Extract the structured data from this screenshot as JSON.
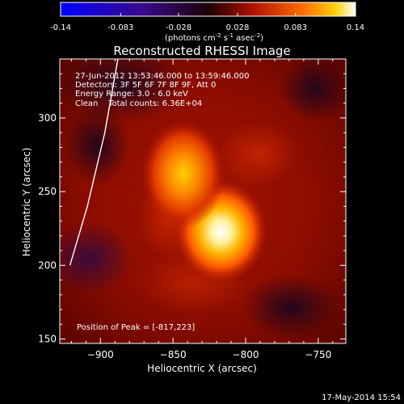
{
  "colorbar": {
    "ticks": [
      "-0.14",
      "-0.083",
      "-0.028",
      "0.028",
      "0.083",
      "0.14"
    ],
    "tick_values": [
      -0.14,
      -0.083,
      -0.028,
      0.028,
      0.083,
      0.14
    ],
    "range": [
      -0.14,
      0.14
    ],
    "units_prefix": "(photons cm",
    "units_exp1": "-2",
    "units_mid": " s",
    "units_exp2": "-1",
    "units_mid2": " asec",
    "units_exp3": "-2",
    "units_suffix": ")"
  },
  "title": "Reconstructed RHESSI Image",
  "annotations": {
    "line1": "27-Jun-2012 13:53:46.000 to 13:59:46.000",
    "line2": "Detectors: 3F 5F 6F 7F 8F 9F, Att 0",
    "line3": "Energy Range: 3.0 - 6.0 keV",
    "line4": "Clean    Total counts: 6.36E+04",
    "peak": "Position of Peak = [-817,223]"
  },
  "footer_timestamp": "17-May-2014 15:54",
  "colors": {
    "background": "#000000",
    "axes": "#ffffff"
  },
  "chart_data": {
    "type": "heatmap",
    "title": "Reconstructed RHESSI Image",
    "xlabel": "Heliocentric X (arcsec)",
    "ylabel": "Heliocentric Y (arcsec)",
    "xlim": [
      -928,
      -731
    ],
    "ylim": [
      147,
      340
    ],
    "x_ticks": [
      -900,
      -850,
      -800,
      -750
    ],
    "y_ticks": [
      150,
      200,
      250,
      300
    ],
    "x_tick_labels": [
      "−900",
      "−850",
      "−800",
      "−750"
    ],
    "y_tick_labels": [
      "150",
      "200",
      "250",
      "300"
    ],
    "value_range": [
      -0.14,
      0.14
    ],
    "sources": [
      {
        "x": -817,
        "y": 223,
        "peak": 0.14,
        "sigma": 10
      },
      {
        "x": -843,
        "y": 262,
        "peak": 0.11,
        "sigma": 9
      }
    ],
    "background_level": 0.06,
    "limb_curve": [
      [
        -921,
        200
      ],
      [
        -909,
        240
      ],
      [
        -897,
        290
      ],
      [
        -888,
        340
      ]
    ],
    "grid": false
  }
}
